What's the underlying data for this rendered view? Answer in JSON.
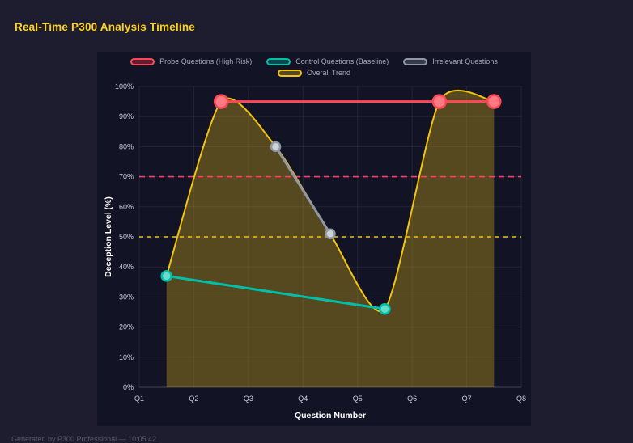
{
  "page": {
    "title": "Real-Time P300 Analysis Timeline",
    "footer": "Generated by P300 Professional — 10:05:42"
  },
  "legend": {
    "items": [
      {
        "label": "Probe Questions (High Risk)",
        "color": "#ff4757"
      },
      {
        "label": "Control Questions (Baseline)",
        "color": "#00bfa8"
      },
      {
        "label": "Irrelevant Questions",
        "color": "#8f98a3"
      },
      {
        "label": "Overall Trend",
        "color": "#f2c40f"
      }
    ]
  },
  "chart_data": {
    "type": "line",
    "title": "Real-Time P300 Analysis Timeline",
    "xlabel": "Question Number",
    "ylabel": "Deception Level (%)",
    "xlim": [
      1,
      8
    ],
    "ylim": [
      0,
      100
    ],
    "grid": true,
    "legend_position": "top",
    "x_tick_labels": [
      "Q1",
      "Q2",
      "Q3",
      "Q4",
      "Q5",
      "Q6",
      "Q7",
      "Q8"
    ],
    "y_tick_labels": [
      "0%",
      "10%",
      "20%",
      "30%",
      "40%",
      "50%",
      "60%",
      "70%",
      "80%",
      "90%",
      "100%"
    ],
    "series": [
      {
        "name": "Probe Questions (High Risk)",
        "color": "#ff4757",
        "marker_fill": "#ff7b84",
        "marker_radius": 8,
        "line_width": 3,
        "smooth": false,
        "points": [
          [
            2.5,
            95
          ],
          [
            6.5,
            95
          ],
          [
            7.5,
            95
          ]
        ]
      },
      {
        "name": "Control Questions (Baseline)",
        "color": "#00bfa8",
        "marker_fill": "#66dccd",
        "marker_radius": 6,
        "line_width": 3,
        "smooth": false,
        "points": [
          [
            1.5,
            37
          ],
          [
            5.5,
            26
          ]
        ]
      },
      {
        "name": "Irrelevant Questions",
        "color": "#8f98a3",
        "marker_fill": "#ccd3d9",
        "marker_radius": 5.5,
        "line_width": 3,
        "smooth": false,
        "points": [
          [
            3.5,
            80
          ],
          [
            4.5,
            51
          ]
        ]
      },
      {
        "name": "Overall Trend",
        "color": "#f2c40f",
        "marker_radius": 0,
        "line_width": 2,
        "smooth": true,
        "fill": "rgba(242,196,15,0.3)",
        "points": [
          [
            1.5,
            37
          ],
          [
            2.5,
            95
          ],
          [
            3.5,
            80
          ],
          [
            4.5,
            51
          ],
          [
            5.5,
            26
          ],
          [
            6.5,
            95
          ],
          [
            7.5,
            95
          ]
        ]
      }
    ],
    "thresholds": [
      {
        "value": 70,
        "color": "#ff3d67",
        "dash": [
          7,
          5
        ]
      },
      {
        "value": 50,
        "color": "#f2c40f",
        "dash": [
          5,
          5
        ]
      }
    ]
  }
}
